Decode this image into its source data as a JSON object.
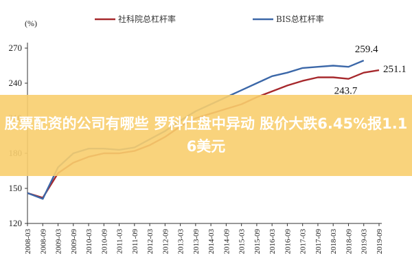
{
  "chart_data": {
    "type": "line",
    "unit_label": "(%)",
    "ylim": [
      120,
      270
    ],
    "yticks": [
      120,
      150,
      180,
      210,
      240,
      270
    ],
    "x": [
      "2008-03",
      "2008-09",
      "2009-03",
      "2009-09",
      "2010-03",
      "2010-09",
      "2011-03",
      "2011-09",
      "2012-03",
      "2012-09",
      "2013-03",
      "2013-09",
      "2014-03",
      "2014-09",
      "2015-03",
      "2015-09",
      "2016-03",
      "2016-09",
      "2017-03",
      "2017-09",
      "2018-03",
      "2018-09",
      "2019-03",
      "2019-09"
    ],
    "series": [
      {
        "name": "社科院总杠杆率",
        "color": "#a6282c",
        "values": [
          146,
          142,
          163,
          172,
          177,
          180,
          180,
          182,
          187,
          194,
          203,
          210,
          214,
          218,
          222,
          228,
          233,
          238,
          242,
          245,
          245,
          243.7,
          249,
          251.1
        ]
      },
      {
        "name": "BIS总杠杆率",
        "color": "#3b67a8",
        "values": [
          146,
          141,
          168,
          180,
          184,
          184,
          183,
          185,
          192,
          199,
          208,
          216,
          222,
          228,
          234,
          240,
          246,
          249,
          253,
          254,
          255,
          254,
          259.4,
          null
        ]
      }
    ],
    "annotations": [
      "259.4",
      "251.1",
      "243.7"
    ],
    "grid": false,
    "legend_position": "top"
  },
  "overlay": {
    "headline": "股票配资的公司有哪些 罗科仕盘中异动 股价大跌6.45%报1.16美元"
  }
}
